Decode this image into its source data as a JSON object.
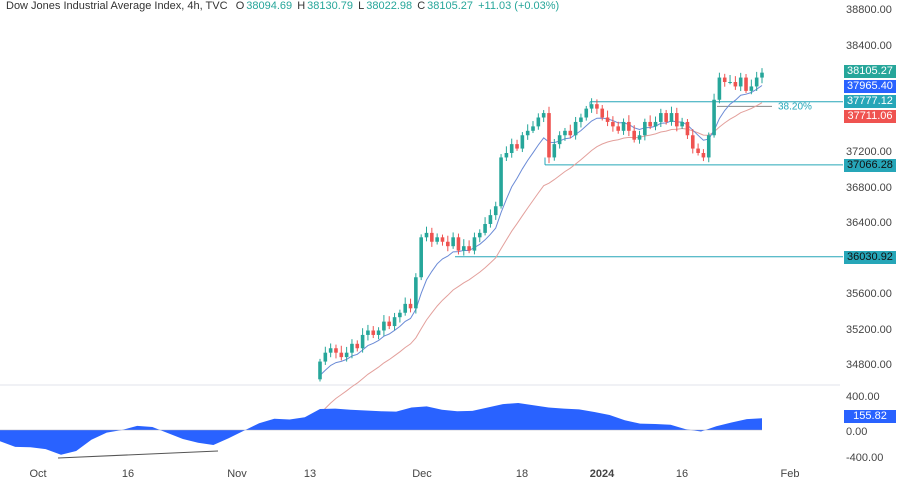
{
  "header": {
    "title": "Dow Jones Industrial Average Index, 4h, TVC",
    "o_label": "O",
    "o": "38094.69",
    "h_label": "H",
    "h": "38130.79",
    "l_label": "L",
    "l": "38022.98",
    "c_label": "C",
    "c": "38105.27",
    "change": "+11.03 (+0.03%)"
  },
  "colors": {
    "up": "#26a69a",
    "down": "#ef5350",
    "ema_fast": "#6b8bd6",
    "ema_slow": "#e3a09c",
    "level": "#26a6b8",
    "osc": "#2962ff"
  },
  "chart_data": [
    {
      "type": "candlestick",
      "title": "Dow Jones Industrial Average Index, 4h, TVC",
      "ylim": [
        34600,
        38900
      ],
      "y_ticks": [
        "38800.00",
        "38400.00",
        "37200.00",
        "36800.00",
        "36400.00",
        "35600.00",
        "35200.00",
        "34800.00"
      ],
      "x_ticks": [
        {
          "label": "Oct"
        },
        {
          "label": "16"
        },
        {
          "label": "Nov"
        },
        {
          "label": "13"
        },
        {
          "label": "Dec"
        },
        {
          "label": "18"
        },
        {
          "label": "2024",
          "bold": true
        },
        {
          "label": "16"
        },
        {
          "label": "Feb"
        }
      ],
      "closes": [
        34850,
        34950,
        35000,
        34950,
        34900,
        34950,
        35050,
        35000,
        35150,
        35200,
        35150,
        35200,
        35300,
        35250,
        35350,
        35400,
        35500,
        35450,
        35800,
        36250,
        36300,
        36200,
        36250,
        36200,
        36150,
        36250,
        36100,
        36150,
        36100,
        36250,
        36300,
        36400,
        36500,
        36600,
        37150,
        37200,
        37300,
        37250,
        37400,
        37450,
        37500,
        37600,
        37650,
        37150,
        37300,
        37400,
        37450,
        37400,
        37550,
        37600,
        37700,
        37750,
        37700,
        37600,
        37550,
        37500,
        37450,
        37550,
        37450,
        37350,
        37400,
        37550,
        37500,
        37550,
        37650,
        37550,
        37650,
        37500,
        37550,
        37400,
        37250,
        37200,
        37150,
        37400,
        37800,
        38050,
        38000,
        38000,
        37950,
        38050,
        37900,
        37950,
        38050,
        38105.27
      ],
      "levels": [
        {
          "value": 37777.12,
          "label": "37777.12"
        },
        {
          "value": 37066.28,
          "label": "37066.28"
        },
        {
          "value": 36030.92,
          "label": "36030.92"
        }
      ],
      "fib": {
        "label": "38.20%",
        "value": 37770
      },
      "price_tags": [
        {
          "label": "38105.27",
          "value": 38105.27,
          "color": "#26a69a"
        },
        {
          "label": "37965.40",
          "value": 37965.4,
          "color": "#2962ff"
        },
        {
          "label": "37777.12",
          "value": 37777.12,
          "color": "#26a6b8"
        },
        {
          "label": "37711.06",
          "value": 37711.06,
          "color": "#ef5350"
        }
      ]
    },
    {
      "type": "area",
      "name": "oscillator",
      "ylim": [
        -400,
        400
      ],
      "y_ticks": [
        "400.00",
        "0.00",
        "-400.00"
      ],
      "last_value": "155.82",
      "values": [
        -150,
        -225,
        -230,
        -255,
        -330,
        -280,
        -130,
        -35,
        0,
        55,
        40,
        -40,
        -120,
        -170,
        -200,
        -110,
        -10,
        90,
        150,
        140,
        170,
        280,
        285,
        270,
        260,
        250,
        245,
        300,
        315,
        270,
        250,
        255,
        300,
        345,
        360,
        330,
        300,
        285,
        275,
        240,
        200,
        130,
        85,
        80,
        70,
        10,
        -20,
        50,
        100,
        145,
        155.82
      ]
    }
  ]
}
